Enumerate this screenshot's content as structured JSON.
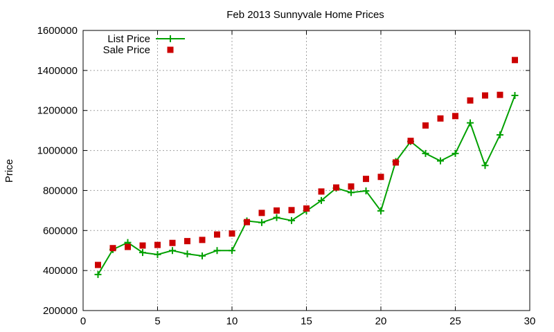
{
  "chart_data": {
    "type": "line",
    "title": "Feb 2013 Sunnyvale Home Prices",
    "xlabel": "",
    "ylabel": "Price",
    "xlim": [
      0,
      30
    ],
    "ylim": [
      200000,
      1600000
    ],
    "x_ticks": [
      0,
      5,
      10,
      15,
      20,
      25,
      30
    ],
    "y_ticks": [
      200000,
      400000,
      600000,
      800000,
      1000000,
      1200000,
      1400000,
      1600000
    ],
    "grid": true,
    "legend_position": "top-left",
    "x": [
      1,
      2,
      3,
      4,
      5,
      6,
      7,
      8,
      9,
      10,
      11,
      12,
      13,
      14,
      15,
      16,
      17,
      18,
      19,
      20,
      21,
      22,
      23,
      24,
      25,
      26,
      27,
      28,
      29
    ],
    "series": [
      {
        "name": "List Price",
        "style": "linespoints",
        "marker": "plus",
        "color": "#00a000",
        "values": [
          380000,
          505000,
          540000,
          490000,
          480000,
          500000,
          483000,
          473000,
          500000,
          500000,
          648000,
          640000,
          665000,
          650000,
          698000,
          750000,
          812000,
          790000,
          798000,
          698000,
          945000,
          1045000,
          985000,
          948000,
          985000,
          1138000,
          925000,
          1078000,
          1275000
        ]
      },
      {
        "name": "Sale Price",
        "style": "points",
        "marker": "square",
        "color": "#cc0000",
        "values": [
          428000,
          512000,
          518000,
          525000,
          528000,
          538000,
          547000,
          553000,
          580000,
          585000,
          642000,
          688000,
          700000,
          702000,
          710000,
          795000,
          815000,
          820000,
          858000,
          868000,
          940000,
          1048000,
          1125000,
          1160000,
          1172000,
          1250000,
          1275000,
          1278000,
          1452000
        ]
      }
    ]
  }
}
